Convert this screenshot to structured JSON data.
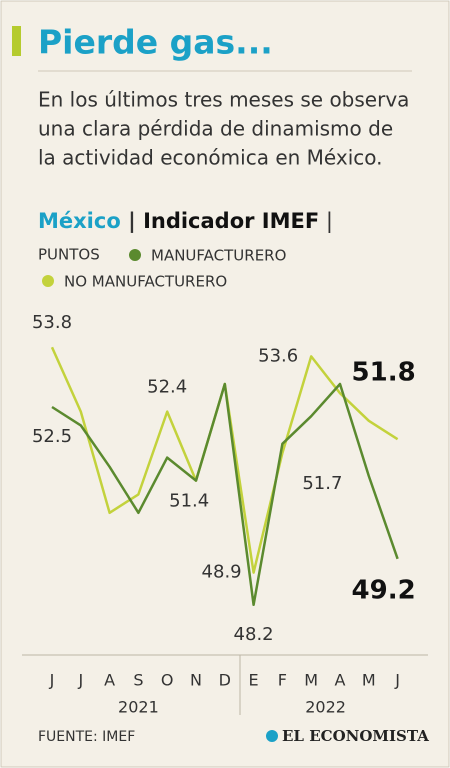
{
  "chart_data": {
    "type": "line",
    "title": "Pierde gas...",
    "subtitle": [
      "En los últimos tres meses se observa",
      "una clara pérdida de dinamismo de",
      "la actividad económica en México."
    ],
    "heading_country": "México",
    "heading_indicator": "Indicador IMEF",
    "units": "PUNTOS",
    "categories": [
      "J",
      "J",
      "A",
      "S",
      "O",
      "N",
      "D",
      "E",
      "F",
      "M",
      "A",
      "M",
      "J"
    ],
    "years": [
      "2021",
      "2022"
    ],
    "series": [
      {
        "name": "MANUFACTURERO",
        "color": "#5b8a2f",
        "values": [
          52.5,
          52.1,
          51.2,
          50.2,
          51.4,
          50.9,
          53.0,
          48.2,
          51.7,
          52.3,
          53.0,
          51.0,
          49.2
        ],
        "value_labels": [
          "52.5",
          null,
          null,
          null,
          "51.4",
          null,
          null,
          "48.2",
          "51.7",
          null,
          null,
          null,
          "49.2"
        ]
      },
      {
        "name": "NO MANUFACTURERO",
        "color": "#c3d23c",
        "values": [
          53.8,
          52.4,
          50.2,
          50.6,
          52.4,
          50.9,
          53.0,
          48.9,
          51.5,
          53.6,
          52.8,
          52.2,
          51.8
        ],
        "value_labels": [
          "53.8",
          null,
          null,
          null,
          "52.4",
          null,
          null,
          "48.9",
          null,
          "53.6",
          null,
          null,
          "51.8"
        ]
      }
    ],
    "ylim": [
      47.5,
      54.5
    ],
    "source": "FUENTE: IMEF",
    "brand": "EL ECONOMISTA"
  }
}
